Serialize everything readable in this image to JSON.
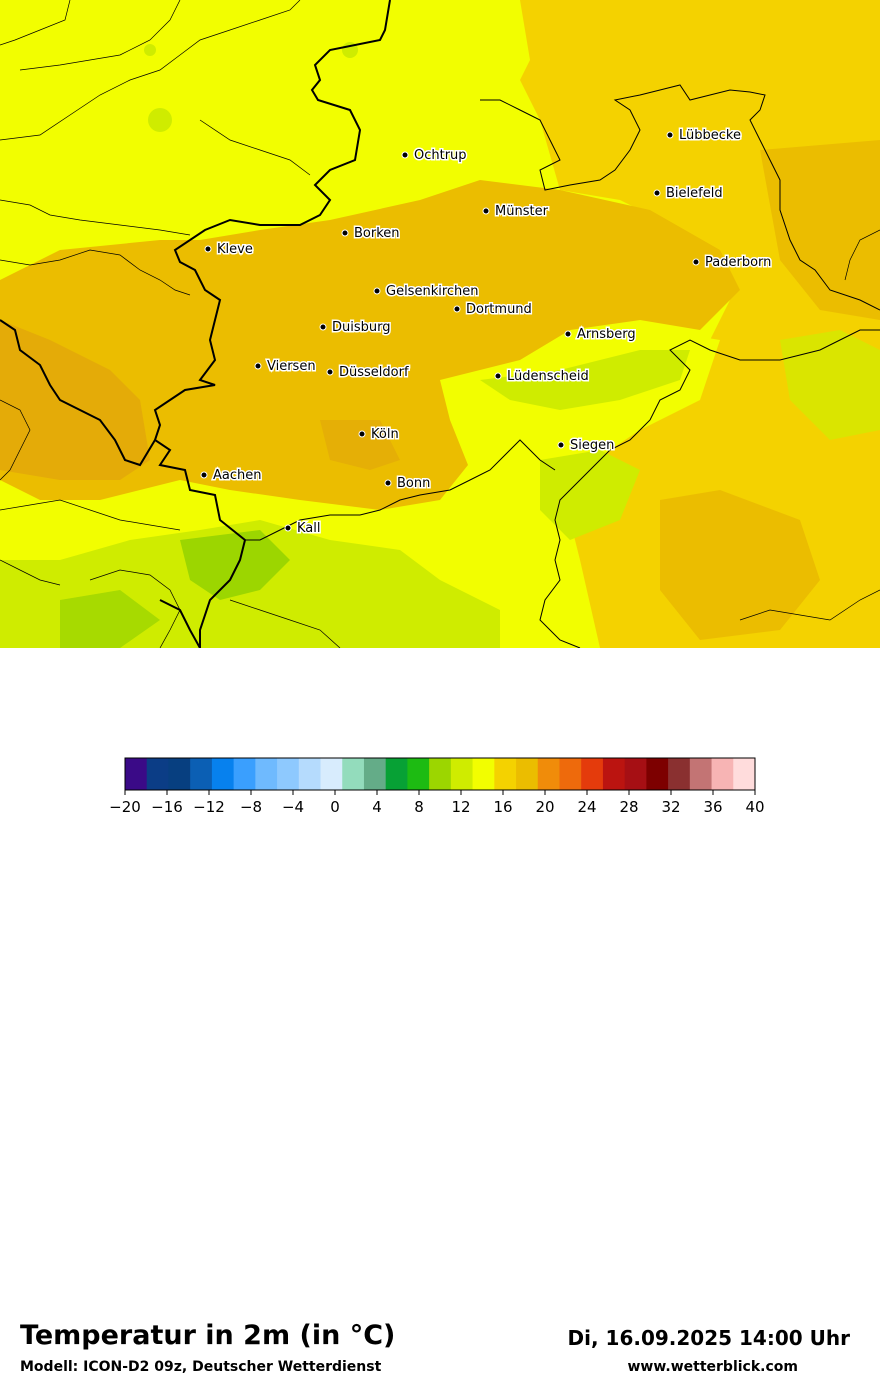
{
  "title": "Temperatur in 2m (in °C)",
  "model": "Modell: ICON-D2 09z, Deutscher Wetterdienst",
  "datetime": "Di, 16.09.2025 14:00 Uhr",
  "website": "www.wetterblick.com",
  "colors": {
    "fill_orange": "#ebbd00",
    "fill_darkorange": "#e4ab08",
    "fill_yellowgold": "#f4d200",
    "fill_yellow": "#f2fe00",
    "fill_lime": "#cfec00",
    "fill_green": "#9cd600",
    "border": "#000000"
  },
  "cities": [
    {
      "name": "Ochtrup"
    },
    {
      "name": "Lübbecke"
    },
    {
      "name": "Bielefeld"
    },
    {
      "name": "Münster"
    },
    {
      "name": "Borken"
    },
    {
      "name": "Kleve"
    },
    {
      "name": "Paderborn"
    },
    {
      "name": "Gelsenkirchen"
    },
    {
      "name": "Dortmund"
    },
    {
      "name": "Duisburg"
    },
    {
      "name": "Arnsberg"
    },
    {
      "name": "Viersen"
    },
    {
      "name": "Düsseldorf"
    },
    {
      "name": "Lüdenscheid"
    },
    {
      "name": "Köln"
    },
    {
      "name": "Siegen"
    },
    {
      "name": "Aachen"
    },
    {
      "name": "Bonn"
    },
    {
      "name": "Kall"
    }
  ],
  "colorbar": {
    "colors": [
      "#3a0a87",
      "#0b3d86",
      "#073f80",
      "#0b5fb4",
      "#0781ee",
      "#3a9ffe",
      "#6fbafe",
      "#8ec9fe",
      "#b5dbfd",
      "#d8ecfd",
      "#93dcbc",
      "#64ac88",
      "#07a135",
      "#1dbb12",
      "#9cd600",
      "#cfec00",
      "#f2fe00",
      "#f4d200",
      "#ebbd00",
      "#f08c0a",
      "#ee6a0c",
      "#e43b0c",
      "#bb1410",
      "#a60f14",
      "#7d0000",
      "#8a3030",
      "#c37474",
      "#f7b4b4",
      "#ffdcdc"
    ],
    "min": -20,
    "max": 40,
    "tick_labels": [
      "−20",
      "−16",
      "−12",
      "−8",
      "−4",
      "0",
      "4",
      "8",
      "12",
      "16",
      "20",
      "24",
      "28",
      "32",
      "36",
      "40"
    ]
  }
}
